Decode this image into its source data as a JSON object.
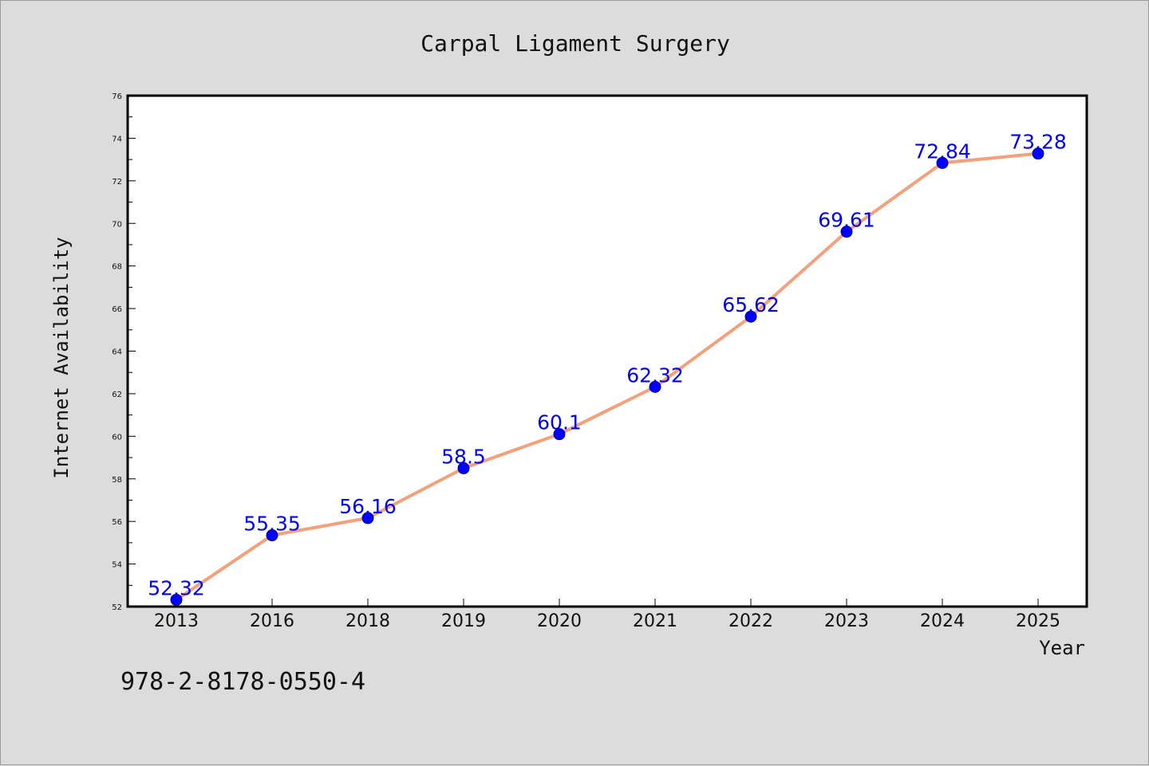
{
  "chart_data": {
    "type": "line",
    "title": "Carpal Ligament Surgery",
    "xlabel": "Year",
    "ylabel": "Internet Availability",
    "categories": [
      "2013",
      "2016",
      "2018",
      "2019",
      "2020",
      "2021",
      "2022",
      "2023",
      "2024",
      "2025"
    ],
    "values": [
      52.32,
      55.35,
      56.16,
      58.5,
      60.1,
      62.32,
      65.62,
      69.61,
      72.84,
      73.28
    ],
    "data_labels": [
      "52.32",
      "55.35",
      "56.16",
      "58.5",
      "60.1",
      "62.32",
      "65.62",
      "69.61",
      "72.84",
      "73.28"
    ],
    "ylim": [
      52,
      76
    ],
    "yticks": [
      52,
      54,
      56,
      58,
      60,
      62,
      64,
      66,
      68,
      70,
      72,
      74,
      76
    ],
    "grid": false,
    "line_color": "#f4a07a",
    "marker_color": "#0000ff",
    "label_color": "#0000ff"
  },
  "footnote": "978-2-8178-0550-4"
}
